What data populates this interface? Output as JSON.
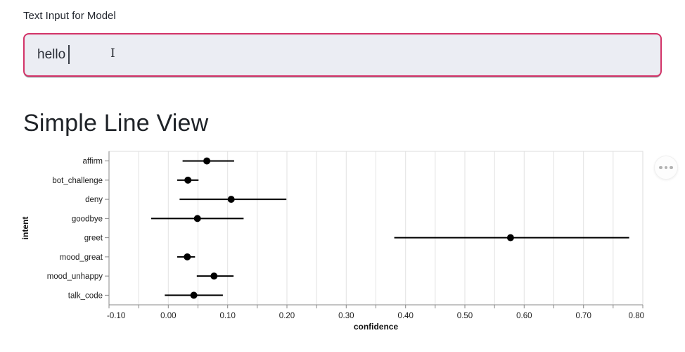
{
  "input_section": {
    "label": "Text Input for Model",
    "value": "hello"
  },
  "heading": "Simple Line View",
  "chart": {
    "actions_button": "more-options"
  },
  "colors": {
    "accent_border": "#d33368",
    "input_background": "#ebedf3",
    "grid": "#e2e2e2",
    "view_border": "#dddddd",
    "axis_domain": "#888888",
    "axis_label": "#1c1c1c",
    "axis_title": "#111111",
    "data": "#000000"
  },
  "chart_data": {
    "type": "scatter",
    "subtype": "horizontal-point-with-error-bars",
    "title": "",
    "xlabel": "confidence",
    "ylabel": "intent",
    "grid": true,
    "xlim": [
      -0.1,
      0.8
    ],
    "x_minor_step": 0.05,
    "x_ticks": [
      {
        "v": -0.1,
        "label": "-0.10"
      },
      {
        "v": 0.0,
        "label": "0.00"
      },
      {
        "v": 0.1,
        "label": "0.10"
      },
      {
        "v": 0.2,
        "label": "0.20"
      },
      {
        "v": 0.3,
        "label": "0.30"
      },
      {
        "v": 0.4,
        "label": "0.40"
      },
      {
        "v": 0.5,
        "label": "0.50"
      },
      {
        "v": 0.6,
        "label": "0.60"
      },
      {
        "v": 0.7,
        "label": "0.70"
      },
      {
        "v": 0.8,
        "label": "0.80"
      }
    ],
    "categories": [
      "affirm",
      "bot_challenge",
      "deny",
      "goodbye",
      "greet",
      "mood_great",
      "mood_unhappy",
      "talk_code"
    ],
    "series": [
      {
        "name": "confidence",
        "values": [
          0.065,
          0.033,
          0.106,
          0.049,
          0.577,
          0.032,
          0.077,
          0.043
        ],
        "ci_low": [
          0.024,
          0.015,
          0.019,
          -0.029,
          0.381,
          0.015,
          0.048,
          -0.006
        ],
        "ci_high": [
          0.111,
          0.051,
          0.199,
          0.127,
          0.777,
          0.045,
          0.11,
          0.092
        ]
      }
    ]
  }
}
